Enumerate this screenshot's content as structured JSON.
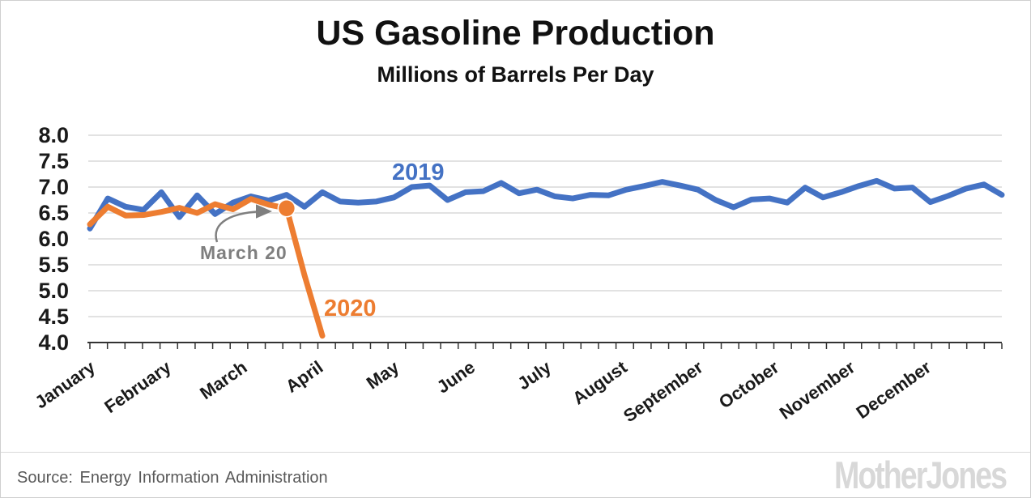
{
  "title": "US Gasoline Production",
  "subtitle": "Millions of Barrels Per Day",
  "footer": {
    "source": "Source: Energy Information Administration",
    "logo": "MotherJones"
  },
  "annotations": {
    "label_2019": "2019",
    "label_2020": "2020",
    "march20_label": "March 20"
  },
  "colors": {
    "blue_2019": "#4472C4",
    "orange_2020": "#ED7D31",
    "annotation_gray": "#7f7f7f",
    "gridline": "#d9d9d9",
    "axis_text": "#1a1a1a",
    "source_text": "#595959",
    "logo_gray": "#d8d8d8"
  },
  "chart_data": {
    "type": "line",
    "title": "US Gasoline Production",
    "subtitle": "Millions of Barrels Per Day",
    "x_unit": "week",
    "categories_months": [
      "January",
      "February",
      "March",
      "April",
      "May",
      "June",
      "July",
      "August",
      "September",
      "October",
      "November",
      "December"
    ],
    "weeks_per_year": 52,
    "ylim": [
      4.0,
      8.0
    ],
    "ytick_step": 0.5,
    "yticks": [
      4.0,
      4.5,
      5.0,
      5.5,
      6.0,
      6.5,
      7.0,
      7.5,
      8.0
    ],
    "grid": "horizontal",
    "legend_position": "inline-labels",
    "series": [
      {
        "name": "2019",
        "color": "#4472C4",
        "values": [
          6.2,
          6.78,
          6.62,
          6.56,
          6.9,
          6.42,
          6.84,
          6.48,
          6.7,
          6.82,
          6.74,
          6.85,
          6.62,
          6.9,
          6.72,
          6.7,
          6.72,
          6.8,
          7.0,
          7.03,
          6.75,
          6.9,
          6.92,
          7.08,
          6.88,
          6.95,
          6.82,
          6.78,
          6.85,
          6.84,
          6.95,
          7.02,
          7.1,
          7.03,
          6.95,
          6.75,
          6.61,
          6.76,
          6.78,
          6.7,
          6.99,
          6.8,
          6.9,
          7.02,
          7.12,
          6.97,
          6.99,
          6.71,
          6.83,
          6.97,
          7.05,
          6.85
        ]
      },
      {
        "name": "2020",
        "color": "#ED7D31",
        "values": [
          6.28,
          6.62,
          6.45,
          6.46,
          6.52,
          6.6,
          6.5,
          6.67,
          6.57,
          6.77,
          6.66,
          6.59,
          5.3,
          4.13
        ],
        "marker": {
          "index": 11,
          "label": "March 20",
          "value": 6.59
        }
      }
    ]
  }
}
